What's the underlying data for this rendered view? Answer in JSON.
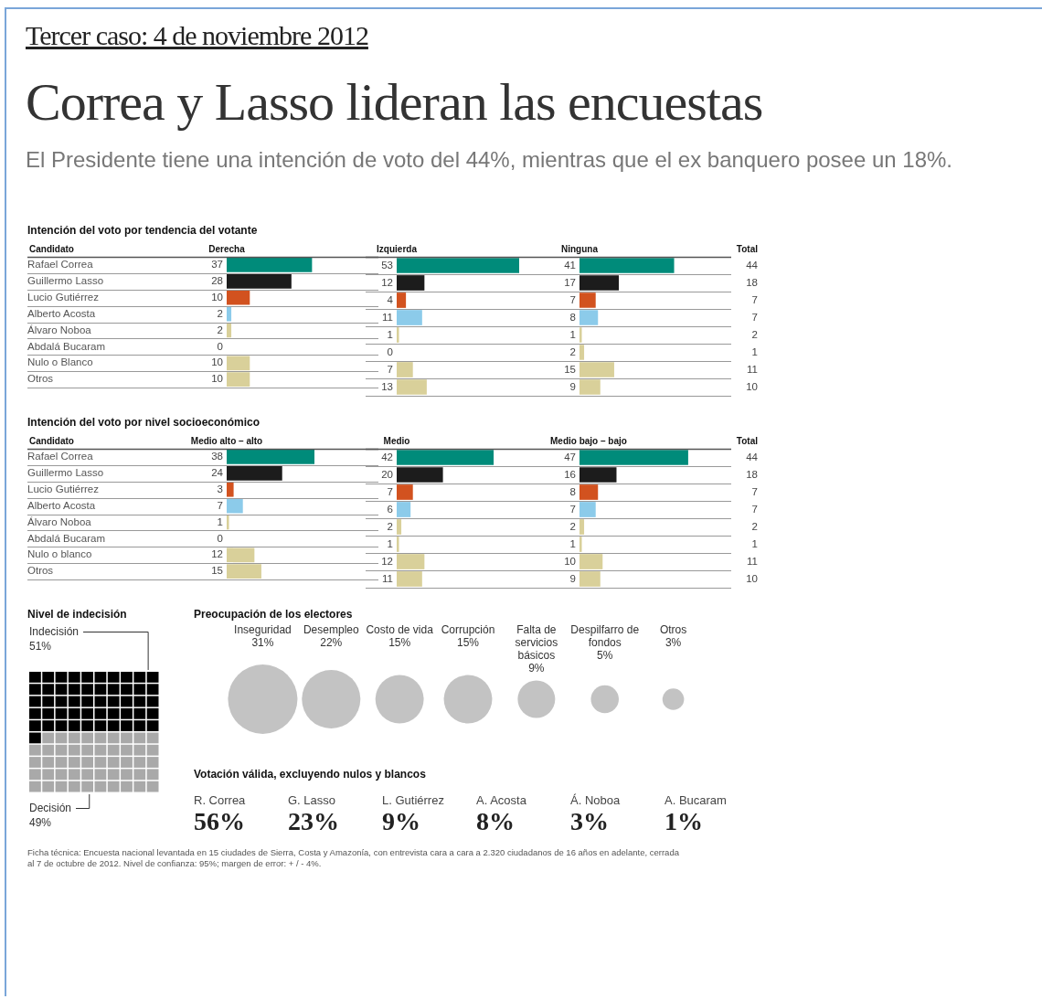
{
  "chart_data": [
    {
      "type": "other",
      "title": "Correa y Lasso lideran las encuestas",
      "subtitle": "El Presidente tiene una intención de voto del 44%, mientras que el ex banquero posee un 18%.",
      "annotations": [
        "Tercer caso: 4 de noviembre 2012"
      ]
    },
    {
      "type": "bar",
      "orientation": "horizontal",
      "title": "Intención del voto por tendencia del votante",
      "ylabel": "Candidato",
      "categories": [
        "Rafael Correa",
        "Guillermo Lasso",
        "Lucio Gutiérrez",
        "Alberto Acosta",
        "Álvaro Noboa",
        "Abdalá Bucaram",
        "Nulo o Blanco",
        "Otros"
      ],
      "tick_labels": "y",
      "grid": "y",
      "data_labels": true,
      "series": [
        {
          "name": "Derecha",
          "colors": [
            "#008b7a",
            "#1c1c1c",
            "#d2521f",
            "#8ccbea",
            "#d9d09a",
            "#d9d09a",
            "#d9d09a",
            "#d9d09a"
          ],
          "values": [
            37,
            28,
            10,
            2,
            2,
            0,
            10,
            10
          ]
        }
      ]
    },
    {
      "type": "bar",
      "orientation": "horizontal",
      "categories": [
        null,
        null,
        null,
        null,
        null,
        null,
        null,
        null
      ],
      "tick_labels": false,
      "grid": "y",
      "data_labels": true,
      "series": [
        {
          "name": "Izquierda",
          "colors": [
            "#008b7a",
            "#1c1c1c",
            "#d2521f",
            "#8ccbea",
            "#d9d09a",
            "#d9d09a",
            "#d9d09a",
            "#d9d09a"
          ],
          "values": [
            53,
            12,
            4,
            11,
            1,
            0,
            7,
            13
          ]
        }
      ]
    },
    {
      "type": "bar",
      "orientation": "horizontal",
      "categories": [
        null,
        null,
        null,
        null,
        null,
        null,
        null,
        null
      ],
      "tick_labels": false,
      "grid": "y",
      "data_labels": true,
      "series": [
        {
          "name": "Ninguna",
          "colors": [
            "#008b7a",
            "#1c1c1c",
            "#d2521f",
            "#8ccbea",
            "#d9d09a",
            "#d9d09a",
            "#d9d09a",
            "#d9d09a"
          ],
          "values": [
            41,
            17,
            7,
            8,
            1,
            2,
            15,
            9
          ]
        }
      ]
    },
    {
      "type": "other",
      "title": "Total",
      "values": [
        44,
        18,
        7,
        7,
        2,
        1,
        11,
        10
      ],
      "data_labels": true
    },
    {
      "type": "bar",
      "orientation": "horizontal",
      "title": "Intención del voto por nivel socioeconómico",
      "ylabel": "Candidato",
      "categories": [
        "Rafael Correa",
        "Guillermo Lasso",
        "Lucio Gutiérrez",
        "Alberto Acosta",
        "Álvaro Noboa",
        "Abdalá Bucaram",
        "Nulo o blanco",
        "Otros"
      ],
      "tick_labels": "y",
      "grid": "y",
      "data_labels": true,
      "series": [
        {
          "name": "Medio alto – alto",
          "colors": [
            "#008b7a",
            "#1c1c1c",
            "#d2521f",
            "#8ccbea",
            "#d9d09a",
            "#d9d09a",
            "#d9d09a",
            "#d9d09a"
          ],
          "values": [
            38,
            24,
            3,
            7,
            1,
            0,
            12,
            15
          ]
        }
      ]
    },
    {
      "type": "bar",
      "orientation": "horizontal",
      "categories": [
        null,
        null,
        null,
        null,
        null,
        null,
        null,
        null
      ],
      "tick_labels": false,
      "grid": "y",
      "data_labels": true,
      "series": [
        {
          "name": "Medio",
          "colors": [
            "#008b7a",
            "#1c1c1c",
            "#d2521f",
            "#8ccbea",
            "#d9d09a",
            "#d9d09a",
            "#d9d09a",
            "#d9d09a"
          ],
          "values": [
            42,
            20,
            7,
            6,
            2,
            1,
            12,
            11
          ]
        }
      ]
    },
    {
      "type": "bar",
      "orientation": "horizontal",
      "categories": [
        null,
        null,
        null,
        null,
        null,
        null,
        null,
        null
      ],
      "tick_labels": false,
      "grid": "y",
      "data_labels": true,
      "series": [
        {
          "name": "Medio bajo – bajo",
          "colors": [
            "#008b7a",
            "#1c1c1c",
            "#d2521f",
            "#8ccbea",
            "#d9d09a",
            "#d9d09a",
            "#d9d09a",
            "#d9d09a"
          ],
          "values": [
            47,
            16,
            8,
            7,
            2,
            1,
            10,
            9
          ]
        }
      ]
    },
    {
      "type": "other",
      "title": "Total",
      "values": [
        44,
        18,
        7,
        7,
        2,
        1,
        11,
        10
      ],
      "data_labels": true
    },
    {
      "type": "other",
      "title": "Nivel de indecisión",
      "categories": [
        "Indecisión",
        "Decisión"
      ],
      "values": [
        51,
        49
      ],
      "value_labels": [
        "51%",
        "49%"
      ],
      "colors": [
        "#000000",
        "#a9a9a9"
      ]
    },
    {
      "type": "other",
      "title": "Preocupación de los electores",
      "categories": [
        "Inseguridad",
        "Desempleo",
        "Costo de vida",
        "Corrupción",
        "Falta de servicios básicos",
        "Despilfarro de fondos",
        "Otros"
      ],
      "values": [
        31,
        22,
        15,
        15,
        9,
        5,
        3
      ],
      "value_labels": [
        "31%",
        "22%",
        "15%",
        "15%",
        "9%",
        "5%",
        "3%"
      ],
      "color": "#c3c3c3"
    },
    {
      "type": "other",
      "title": "Votación válida, excluyendo nulos y blancos",
      "categories": [
        "R. Correa",
        "G. Lasso",
        "L. Gutiérrez",
        "A. Acosta",
        "Á. Noboa",
        "A. Bucaram"
      ],
      "values": [
        56,
        23,
        9,
        8,
        3,
        1
      ],
      "value_labels": [
        "56%",
        "23%",
        "9%",
        "8%",
        "3%",
        "1%"
      ],
      "annotations": [
        "Ficha técnica: Encuesta nacional levantada en 15 ciudades de Sierra, Costa y Amazonía, con entrevista cara a cara a 2.320 ciudadanos de 16 años en adelante, cerrada al 7 de octubre de 2012. Nivel de confianza: 95%; margen de error: + / - 4%."
      ]
    }
  ]
}
